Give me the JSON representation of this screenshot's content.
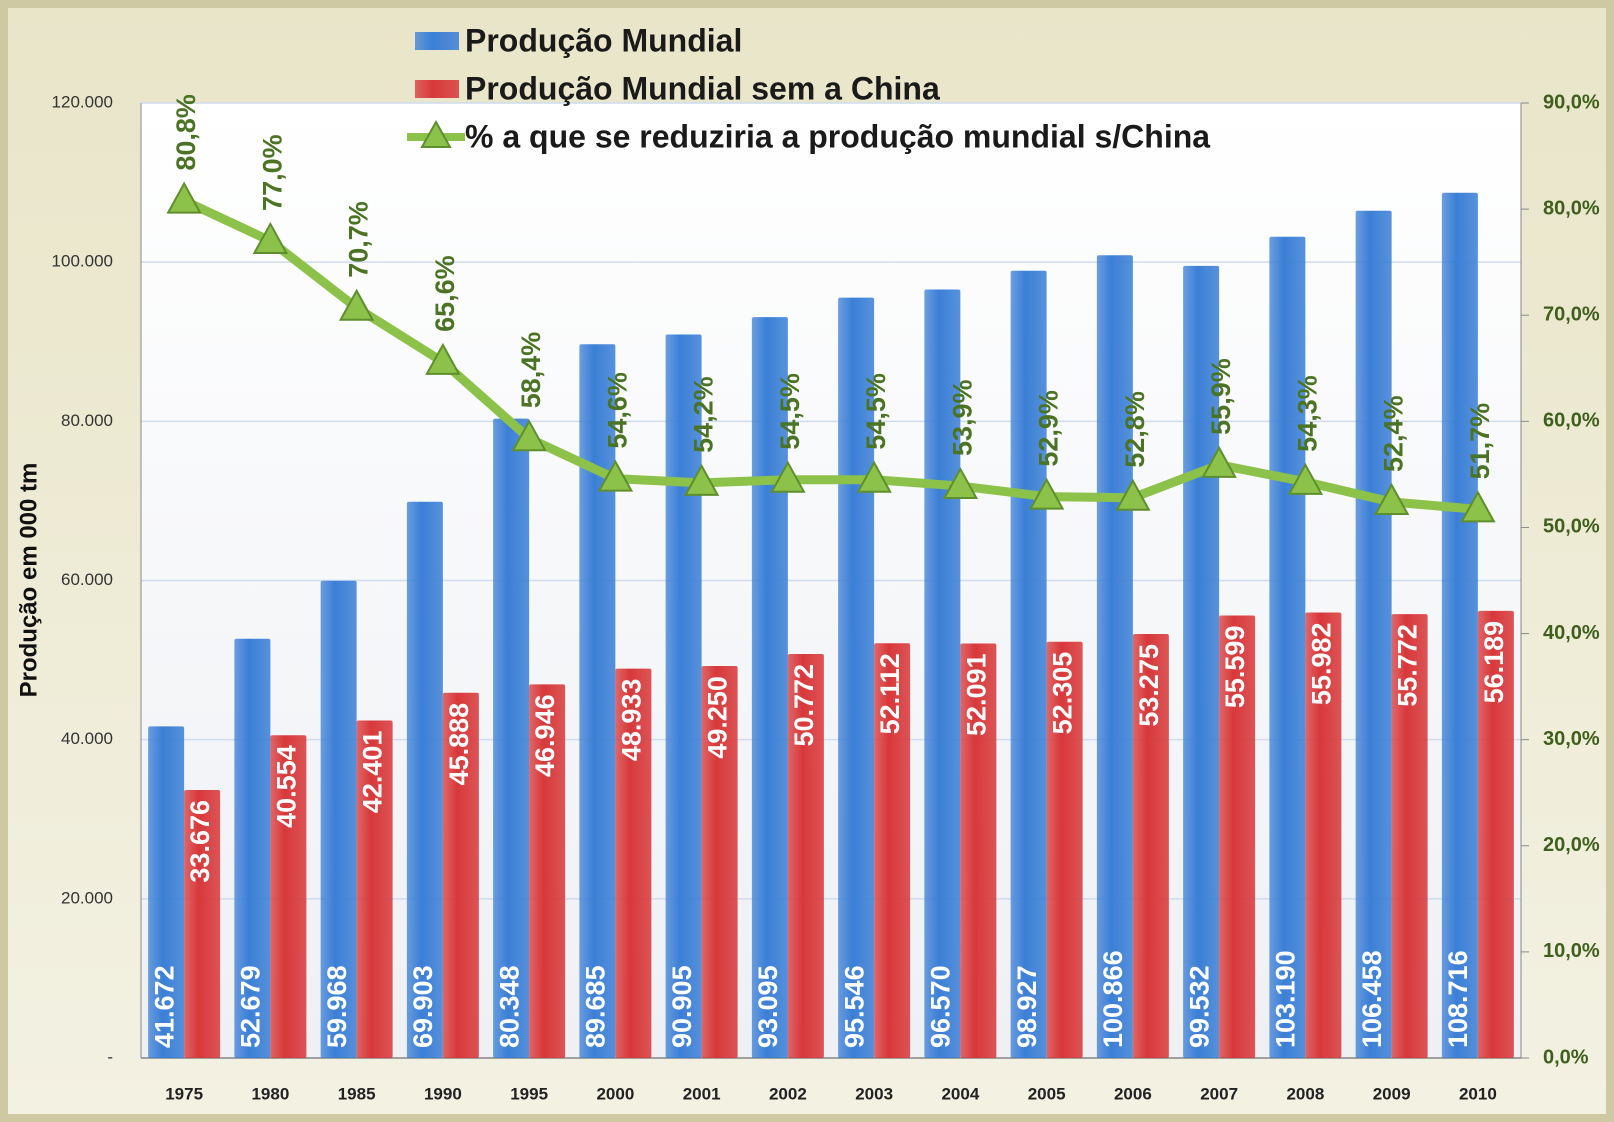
{
  "chart_data": {
    "type": "bar",
    "categories": [
      "1975",
      "1980",
      "1985",
      "1990",
      "1995",
      "2000",
      "2001",
      "2002",
      "2003",
      "2004",
      "2005",
      "2006",
      "2007",
      "2008",
      "2009",
      "2010"
    ],
    "series": [
      {
        "name": "Produção Mundial",
        "color": "#3b7fd6",
        "type": "bar",
        "values": [
          41672,
          52679,
          59968,
          69903,
          80348,
          89685,
          90905,
          93095,
          95546,
          96570,
          98927,
          100866,
          99532,
          103190,
          106458,
          108716
        ],
        "value_labels": [
          "41.672",
          "52.679",
          "59.968",
          "69.903",
          "80.348",
          "89.685",
          "90.905",
          "93.095",
          "95.546",
          "96.570",
          "98.927",
          "100.866",
          "99.532",
          "103.190",
          "106.458",
          "108.716"
        ]
      },
      {
        "name": "Produção Mundial sem a China",
        "color": "#d8383a",
        "type": "bar",
        "values": [
          33676,
          40554,
          42401,
          45888,
          46946,
          48933,
          49250,
          50772,
          52112,
          52091,
          52305,
          53275,
          55599,
          55982,
          55772,
          56189
        ],
        "value_labels": [
          "33.676",
          "40.554",
          "42.401",
          "45.888",
          "46.946",
          "48.933",
          "49.250",
          "50.772",
          "52.112",
          "52.091",
          "52.305",
          "53.275",
          "55.599",
          "55.982",
          "55.772",
          "56.189"
        ]
      },
      {
        "name": "% a que se reduziria a produção mundial s/China",
        "color": "#8cc14a",
        "type": "line",
        "axis": "y2",
        "values": [
          80.8,
          77.0,
          70.7,
          65.6,
          58.4,
          54.6,
          54.2,
          54.5,
          54.5,
          53.9,
          52.9,
          52.8,
          55.9,
          54.3,
          52.4,
          51.7
        ],
        "value_labels": [
          "80,8%",
          "77,0%",
          "70,7%",
          "65,6%",
          "58,4%",
          "54,6%",
          "54,2%",
          "54,5%",
          "54,5%",
          "53,9%",
          "52,9%",
          "52,8%",
          "55,9%",
          "54,3%",
          "52,4%",
          "51,7%"
        ]
      }
    ],
    "y_label": "Produção em 000 tm",
    "ylim": [
      0,
      120000
    ],
    "yticks": [
      {
        "value": 0,
        "label": "-"
      },
      {
        "value": 20000,
        "label": "20.000"
      },
      {
        "value": 40000,
        "label": "40.000"
      },
      {
        "value": 60000,
        "label": "60.000"
      },
      {
        "value": 80000,
        "label": "80.000"
      },
      {
        "value": 100000,
        "label": "100.000"
      },
      {
        "value": 120000,
        "label": "120.000"
      }
    ],
    "y2lim": [
      0,
      90
    ],
    "y2ticks": [
      {
        "value": 0,
        "label": "0,0%"
      },
      {
        "value": 10,
        "label": "10,0%"
      },
      {
        "value": 20,
        "label": "20,0%"
      },
      {
        "value": 30,
        "label": "30,0%"
      },
      {
        "value": 40,
        "label": "40,0%"
      },
      {
        "value": 50,
        "label": "50,0%"
      },
      {
        "value": 60,
        "label": "60,0%"
      },
      {
        "value": 70,
        "label": "70,0%"
      },
      {
        "value": 80,
        "label": "80,0%"
      },
      {
        "value": 90,
        "label": "90,0%"
      }
    ],
    "grid": true,
    "legend": "top"
  }
}
